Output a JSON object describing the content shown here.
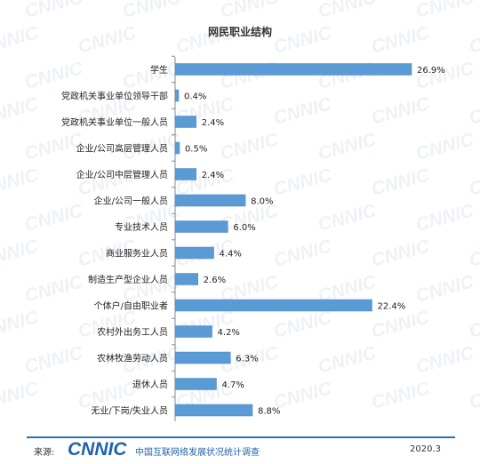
{
  "watermark_text": "CNNIC",
  "chart_data": {
    "type": "bar",
    "orientation": "horizontal",
    "title": "网民职业结构",
    "unit": "%",
    "categories": [
      "学生",
      "党政机关事业单位领导干部",
      "党政机关事业单位一般人员",
      "企业/公司高层管理人员",
      "企业/公司中层管理人员",
      "企业/公司一般人员",
      "专业技术人员",
      "商业服务业人员",
      "制造生产型企业人员",
      "个体户/自由职业者",
      "农村外出务工人员",
      "农林牧渔劳动人员",
      "退休人员",
      "无业/下岗/失业人员"
    ],
    "values": [
      26.9,
      0.4,
      2.4,
      0.5,
      2.4,
      8.0,
      6.0,
      4.4,
      2.6,
      22.4,
      4.2,
      6.3,
      4.7,
      8.8
    ],
    "value_labels": [
      "26.9%",
      "0.4%",
      "2.4%",
      "0.5%",
      "2.4%",
      "8.0%",
      "6.0%",
      "4.4%",
      "2.6%",
      "22.4%",
      "4.2%",
      "6.3%",
      "4.7%",
      "8.8%"
    ],
    "bar_color": "#5b9bd5",
    "axis_color": "#888888",
    "grid": false,
    "legend": "none"
  },
  "footer": {
    "source_label": "来源:",
    "logo_text": "CNNIC",
    "report_name": "中国互联网络发展状况统计调查",
    "date": "2020.3"
  },
  "colors": {
    "accent": "#1f63ad",
    "footer_line": "#2e6fb6"
  }
}
